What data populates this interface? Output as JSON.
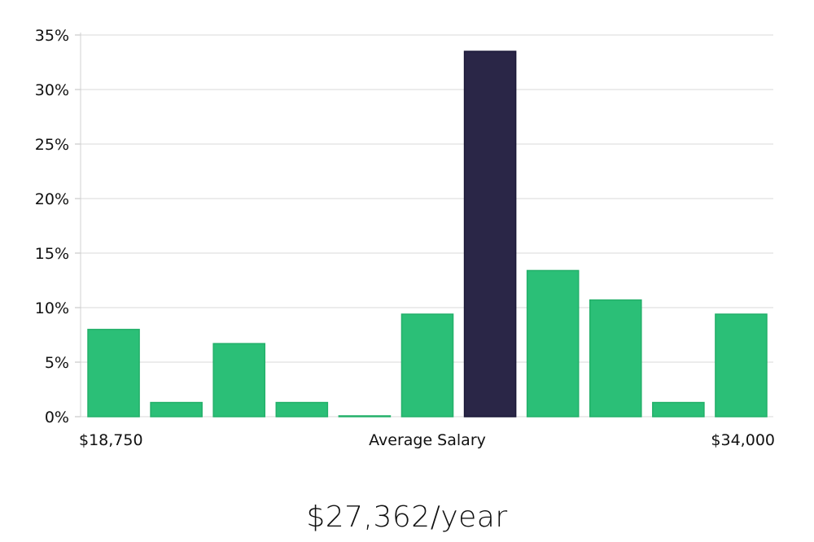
{
  "chart_data": {
    "type": "bar",
    "title": "$27,362/year",
    "xlabel": "Average Salary",
    "ylabel": "",
    "x_range_labels": {
      "min": "$18,750",
      "max": "$34,000"
    },
    "y_ticks": [
      "0%",
      "5%",
      "10%",
      "15%",
      "20%",
      "25%",
      "30%",
      "35%"
    ],
    "ylim": [
      0,
      35
    ],
    "grid": true,
    "values": [
      8.0,
      1.3,
      6.7,
      1.3,
      0.05,
      9.4,
      33.5,
      13.4,
      10.7,
      1.3,
      9.4
    ],
    "highlight_index": 6,
    "colors": {
      "bar": "#2bbf77",
      "bar_stroke": "#23b06a",
      "highlight": "#2a2647",
      "highlight_stroke": "#1b1838",
      "grid": "#d9d9d9",
      "axis": "#bfbfbf"
    }
  }
}
